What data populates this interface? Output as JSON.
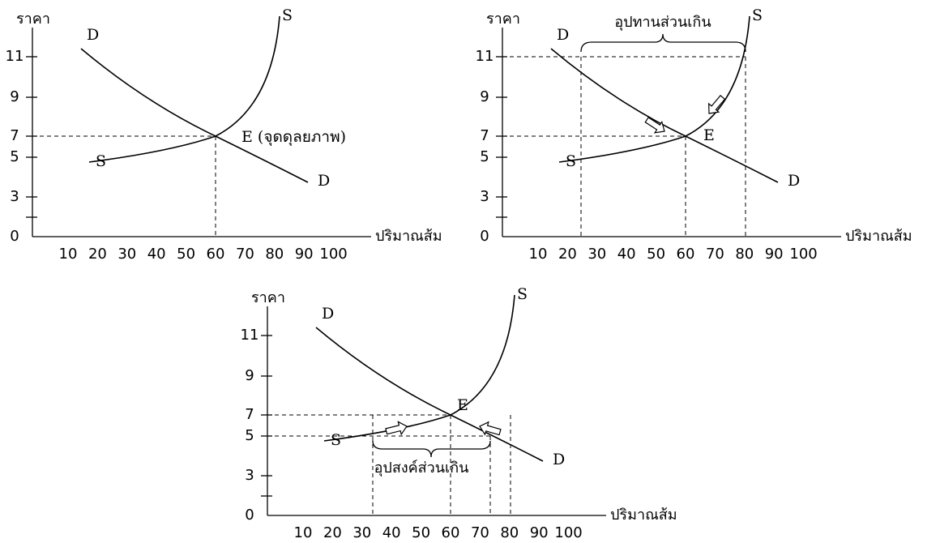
{
  "panels": [
    {
      "y_axis_label": "ราคา",
      "x_axis_label": "ปริมาณส้ม",
      "yticks": [
        0,
        3,
        5,
        7,
        9,
        11
      ],
      "xticks": [
        10,
        20,
        30,
        40,
        50,
        60,
        70,
        80,
        90,
        100
      ],
      "curve_labels": [
        "D",
        "S",
        "S",
        "D"
      ],
      "equilibrium_label": "E (จุดดุลยภาพ)"
    },
    {
      "y_axis_label": "ราคา",
      "x_axis_label": "ปริมาณส้ม",
      "yticks": [
        0,
        3,
        5,
        7,
        9,
        11
      ],
      "xticks": [
        10,
        20,
        30,
        40,
        50,
        60,
        70,
        80,
        90,
        100
      ],
      "curve_labels": [
        "D",
        "S",
        "S",
        "D"
      ],
      "equilibrium_label": "E",
      "annotation": "อุปทานส่วนเกิน"
    },
    {
      "y_axis_label": "ราคา",
      "x_axis_label": "ปริมาณส้ม",
      "yticks": [
        0,
        3,
        5,
        7,
        9,
        11
      ],
      "xticks": [
        10,
        20,
        30,
        40,
        50,
        60,
        70,
        80,
        90,
        100
      ],
      "curve_labels": [
        "D",
        "S",
        "S",
        "D"
      ],
      "equilibrium_label": "E",
      "annotation": "อุปสงค์ส่วนเกิน"
    }
  ]
}
